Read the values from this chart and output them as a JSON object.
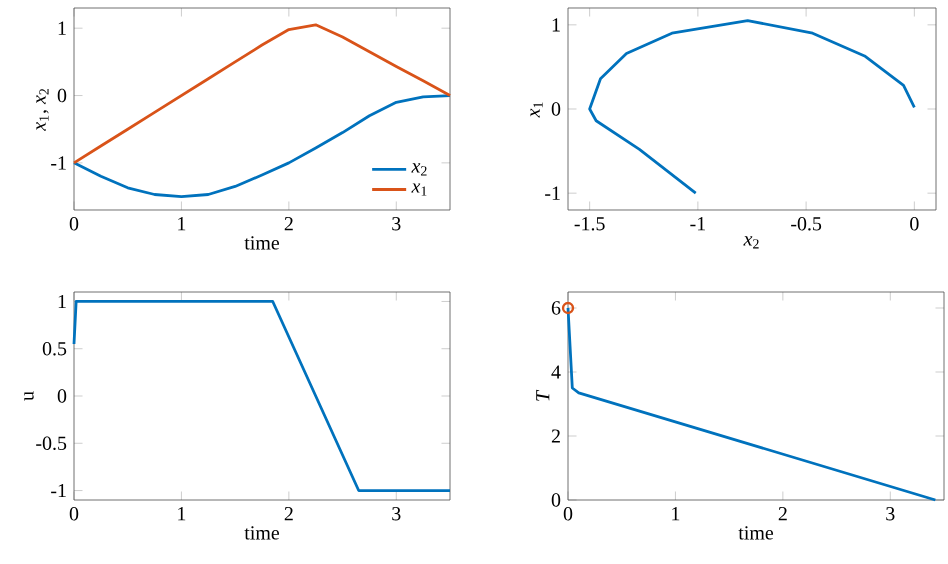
{
  "chart_data": [
    {
      "type": "line",
      "xlabel": "time",
      "ylabel": "*x*$_{1}$, *x*$_{2}$",
      "xlim": [
        0,
        3.5
      ],
      "ylim": [
        -1.7,
        1.3
      ],
      "xticks": [
        0,
        1,
        2,
        3
      ],
      "yticks": [
        -1,
        0,
        1
      ],
      "legend": "bottom right",
      "line_style": "solid",
      "x": [
        0,
        0.25,
        0.5,
        0.75,
        1,
        1.25,
        1.5,
        1.75,
        2,
        2.25,
        2.5,
        2.75,
        3,
        3.25,
        3.5
      ],
      "series": [
        {
          "name": "*x*$_{2}$",
          "color": "#0072bd",
          "values": [
            -1,
            -1.2,
            -1.37,
            -1.47,
            -1.5,
            -1.47,
            -1.35,
            -1.18,
            -1.0,
            -0.78,
            -0.55,
            -0.3,
            -0.1,
            -0.02,
            0
          ]
        },
        {
          "name": "*x*$_{1}$",
          "color": "#d95319",
          "values": [
            -1,
            -0.75,
            -0.5,
            -0.25,
            0,
            0.25,
            0.5,
            0.75,
            0.98,
            1.05,
            0.87,
            0.65,
            0.43,
            0.22,
            0
          ]
        }
      ]
    },
    {
      "type": "line",
      "xlabel": "*x*$_{2}$",
      "ylabel": "*x*$_{1}$",
      "xlim": [
        -1.6,
        0.1
      ],
      "ylim": [
        -1.2,
        1.2
      ],
      "xticks": [
        -1.5,
        -1,
        -0.5,
        0
      ],
      "yticks": [
        -1,
        0,
        1
      ],
      "line_style": "solid",
      "series": [
        {
          "color": "#0072bd",
          "x": [
            -1.01,
            -1.27,
            -1.47,
            -1.5,
            -1.45,
            -1.33,
            -1.12,
            -0.77,
            -0.47,
            -0.23,
            -0.05,
            0
          ],
          "values": [
            -1.0,
            -0.48,
            -0.14,
            0,
            0.36,
            0.66,
            0.9,
            1.05,
            0.9,
            0.63,
            0.28,
            0.02
          ]
        }
      ]
    },
    {
      "type": "line",
      "xlabel": "time",
      "ylabel": "u",
      "xlim": [
        0,
        3.5
      ],
      "ylim": [
        -1.1,
        1.1
      ],
      "xticks": [
        0,
        1,
        2,
        3
      ],
      "yticks": [
        -1,
        -0.5,
        0,
        0.5,
        1
      ],
      "line_style": "solid",
      "series": [
        {
          "color": "#0072bd",
          "x": [
            0,
            0.02,
            1.85,
            2.65,
            3.5
          ],
          "values": [
            0.55,
            1,
            1,
            -1,
            -1
          ]
        }
      ]
    },
    {
      "type": "line",
      "xlabel": "time",
      "ylabel": "*T*",
      "xlim": [
        0,
        3.5
      ],
      "ylim": [
        0,
        6.5
      ],
      "xticks": [
        0,
        1,
        2,
        3
      ],
      "yticks": [
        0,
        2,
        4,
        6
      ],
      "line_style": "solid",
      "series": [
        {
          "color": "#0072bd",
          "x": [
            0,
            0.04,
            0.1,
            3.42
          ],
          "values": [
            6,
            3.5,
            3.35,
            0
          ]
        },
        {
          "type": "scatter",
          "marker": "circle",
          "color": "#d95319",
          "x": [
            0
          ],
          "values": [
            6
          ]
        }
      ]
    }
  ]
}
